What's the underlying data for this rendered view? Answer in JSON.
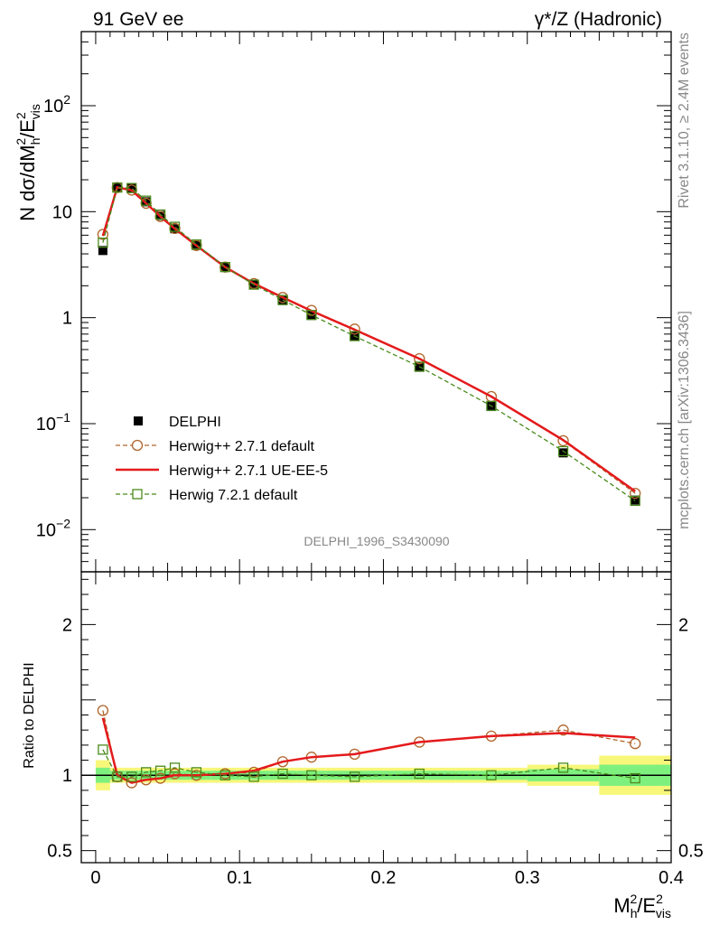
{
  "header": {
    "left": "91 GeV ee",
    "right": "γ*/Z (Hadronic)"
  },
  "side_labels": {
    "rivet": "Rivet 3.1.10, ≥ 2.4M events",
    "mcplots": "mcplots.cern.ch [arXiv:1306.3436]"
  },
  "watermark": "DELPHI_1996_S3430090",
  "chart_data": [
    {
      "type": "line",
      "panel": "main",
      "ylabel": {
        "base": "N dσ/dM",
        "sub1": "h",
        "sup1": "2",
        "mid": "/E",
        "sup2": "2",
        "sub2": "vis"
      },
      "yscale": "log",
      "ylim": [
        0.004,
        500
      ],
      "xlim": [
        -0.01,
        0.4
      ],
      "y_ticks": [
        {
          "value": 0.01,
          "base": "10",
          "exp": "−2"
        },
        {
          "value": 0.1,
          "base": "10",
          "exp": "−1"
        },
        {
          "value": 1,
          "base": "1",
          "exp": ""
        },
        {
          "value": 10,
          "base": "10",
          "exp": ""
        },
        {
          "value": 100,
          "base": "10",
          "exp": "2"
        }
      ],
      "legend_position": "center-left",
      "series": [
        {
          "name": "DELPHI",
          "style": "data-points",
          "color": "#000000",
          "x": [
            0.005,
            0.015,
            0.025,
            0.035,
            0.045,
            0.055,
            0.07,
            0.09,
            0.11,
            0.13,
            0.15,
            0.18,
            0.225,
            0.275,
            0.325,
            0.375
          ],
          "y": [
            4.3,
            17.0,
            16.8,
            12.4,
            9.2,
            6.9,
            4.8,
            3.0,
            2.05,
            1.45,
            1.05,
            0.67,
            0.34,
            0.145,
            0.053,
            0.019
          ]
        },
        {
          "name": "Herwig++ 2.7.1 default",
          "style": "dashed-circle",
          "color": "#b0642a",
          "x": [
            0.005,
            0.015,
            0.025,
            0.035,
            0.045,
            0.055,
            0.07,
            0.09,
            0.11,
            0.13,
            0.15,
            0.18,
            0.225,
            0.275,
            0.325,
            0.375
          ],
          "y": [
            6.1,
            16.9,
            16.0,
            12.0,
            9.0,
            6.95,
            4.8,
            3.0,
            2.1,
            1.55,
            1.17,
            0.78,
            0.41,
            0.18,
            0.069,
            0.022
          ]
        },
        {
          "name": "Herwig++ 2.7.1 UE-EE-5",
          "style": "solid",
          "color": "#e41a1c",
          "x": [
            0.005,
            0.015,
            0.025,
            0.035,
            0.045,
            0.055,
            0.07,
            0.09,
            0.11,
            0.13,
            0.15,
            0.18,
            0.225,
            0.275,
            0.325,
            0.375
          ],
          "y": [
            5.9,
            17.0,
            15.9,
            12.0,
            9.0,
            6.9,
            4.8,
            3.0,
            2.1,
            1.55,
            1.16,
            0.77,
            0.41,
            0.18,
            0.07,
            0.023
          ]
        },
        {
          "name": "Herwig 7.2.1 default",
          "style": "dashed-square",
          "color": "#4a8a1c",
          "x": [
            0.005,
            0.015,
            0.025,
            0.035,
            0.045,
            0.055,
            0.07,
            0.09,
            0.11,
            0.13,
            0.15,
            0.18,
            0.225,
            0.275,
            0.325,
            0.375
          ],
          "y": [
            5.1,
            16.9,
            16.7,
            12.7,
            9.4,
            7.2,
            4.9,
            3.0,
            2.05,
            1.47,
            1.06,
            0.67,
            0.345,
            0.147,
            0.055,
            0.0187
          ]
        }
      ]
    },
    {
      "type": "line",
      "panel": "ratio",
      "ylabel": "Ratio to DELPHI",
      "xlabel": {
        "base": "M",
        "sub1": "h",
        "sup1": "2",
        "mid": "/E",
        "sup2": "2",
        "sub2": "vis"
      },
      "ylim": [
        0.42,
        2.35
      ],
      "xlim": [
        -0.01,
        0.4
      ],
      "x_ticks": [
        {
          "value": 0,
          "label": "0"
        },
        {
          "value": 0.1,
          "label": "0.1"
        },
        {
          "value": 0.2,
          "label": "0.2"
        },
        {
          "value": 0.3,
          "label": "0.3"
        },
        {
          "value": 0.4,
          "label": "0.4"
        }
      ],
      "y_ticks": [
        {
          "value": 0.5,
          "label": "0.5"
        },
        {
          "value": 1,
          "label": "1"
        },
        {
          "value": 2,
          "label": "2"
        }
      ],
      "right_tick_labels": [
        "0.5",
        "2"
      ],
      "bands": {
        "edges": [
          0,
          0.01,
          0.02,
          0.03,
          0.04,
          0.05,
          0.06,
          0.08,
          0.1,
          0.12,
          0.14,
          0.16,
          0.2,
          0.25,
          0.3,
          0.35,
          0.4
        ],
        "inner": [
          0.05,
          0.03,
          0.03,
          0.03,
          0.03,
          0.03,
          0.03,
          0.03,
          0.03,
          0.03,
          0.03,
          0.03,
          0.03,
          0.03,
          0.04,
          0.07
        ],
        "outer": [
          0.1,
          0.05,
          0.05,
          0.05,
          0.05,
          0.05,
          0.05,
          0.05,
          0.05,
          0.05,
          0.05,
          0.05,
          0.05,
          0.05,
          0.07,
          0.13
        ],
        "inner_color": "#7ef07e",
        "outer_color": "#f7f77a"
      },
      "series": [
        {
          "name": "Herwig++ 2.7.1 default",
          "style": "dashed-circle",
          "color": "#b0642a",
          "x": [
            0.005,
            0.015,
            0.025,
            0.035,
            0.045,
            0.055,
            0.07,
            0.09,
            0.11,
            0.13,
            0.15,
            0.18,
            0.225,
            0.275,
            0.325,
            0.375
          ],
          "y": [
            1.43,
            0.99,
            0.95,
            0.97,
            0.98,
            1.01,
            1.0,
            1.01,
            1.02,
            1.09,
            1.12,
            1.14,
            1.22,
            1.26,
            1.3,
            1.21
          ]
        },
        {
          "name": "Herwig++ 2.7.1 UE-EE-5",
          "style": "solid",
          "color": "#e41a1c",
          "x": [
            0.005,
            0.015,
            0.025,
            0.035,
            0.045,
            0.055,
            0.07,
            0.09,
            0.11,
            0.13,
            0.15,
            0.18,
            0.225,
            0.275,
            0.325,
            0.375
          ],
          "y": [
            1.38,
            1.0,
            0.95,
            0.97,
            0.98,
            1.0,
            1.0,
            1.01,
            1.03,
            1.09,
            1.12,
            1.14,
            1.22,
            1.26,
            1.28,
            1.25
          ]
        },
        {
          "name": "Herwig 7.2.1 default",
          "style": "dashed-square",
          "color": "#4a8a1c",
          "x": [
            0.005,
            0.015,
            0.025,
            0.035,
            0.045,
            0.055,
            0.07,
            0.09,
            0.11,
            0.13,
            0.15,
            0.18,
            0.225,
            0.275,
            0.325,
            0.375
          ],
          "y": [
            1.17,
            0.99,
            0.99,
            1.02,
            1.03,
            1.05,
            1.02,
            1.0,
            0.99,
            1.01,
            1.0,
            0.99,
            1.01,
            1.0,
            1.05,
            0.98
          ]
        }
      ]
    }
  ]
}
